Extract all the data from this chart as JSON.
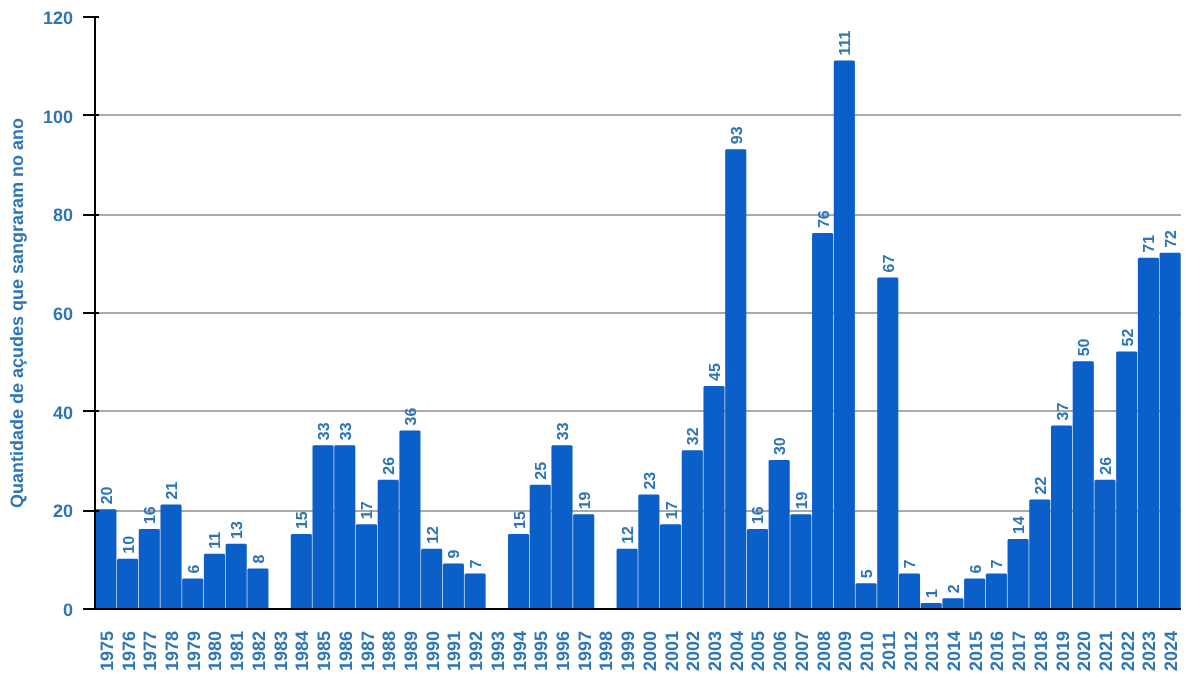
{
  "chart_data": {
    "type": "bar",
    "ylabel": "Quantidade de açudes que sangraram no ano",
    "categories": [
      "1975",
      "1976",
      "1977",
      "1978",
      "1979",
      "1980",
      "1981",
      "1982",
      "1983",
      "1984",
      "1985",
      "1986",
      "1987",
      "1988",
      "1989",
      "1990",
      "1991",
      "1992",
      "1993",
      "1994",
      "1995",
      "1996",
      "1997",
      "1998",
      "1999",
      "2000",
      "2001",
      "2002",
      "2003",
      "2004",
      "2005",
      "2006",
      "2007",
      "2008",
      "2009",
      "2010",
      "2011",
      "2012",
      "2013",
      "2014",
      "2015",
      "2016",
      "2017",
      "2018",
      "2019",
      "2020",
      "2021",
      "2022",
      "2023",
      "2024"
    ],
    "values": [
      20,
      10,
      16,
      21,
      6,
      11,
      13,
      8,
      0,
      15,
      33,
      33,
      17,
      26,
      36,
      12,
      9,
      7,
      0,
      15,
      25,
      33,
      19,
      0,
      12,
      23,
      17,
      32,
      45,
      93,
      16,
      30,
      19,
      76,
      111,
      5,
      67,
      7,
      1,
      2,
      6,
      7,
      14,
      22,
      37,
      50,
      26,
      52,
      71,
      72
    ],
    "value_labels": [
      "20",
      "10",
      "16",
      "21",
      "6",
      "11",
      "13",
      "8",
      null,
      "15",
      "33",
      "33",
      "17",
      "26",
      "36",
      "12",
      "9",
      "7",
      null,
      "15",
      "25",
      "33",
      "19",
      null,
      "12",
      "23",
      "17",
      "32",
      "45",
      "93",
      "16",
      "30",
      "19",
      "76",
      "111",
      "5",
      "67",
      "7",
      "1",
      "2",
      "6",
      "7",
      "14",
      "22",
      "37",
      "50",
      "26",
      "52",
      "71",
      "72"
    ],
    "color": "#0a5fc8",
    "ylim": [
      0,
      120
    ],
    "yticks": [
      0,
      20,
      40,
      60,
      80,
      100,
      120
    ],
    "grid": "y"
  }
}
